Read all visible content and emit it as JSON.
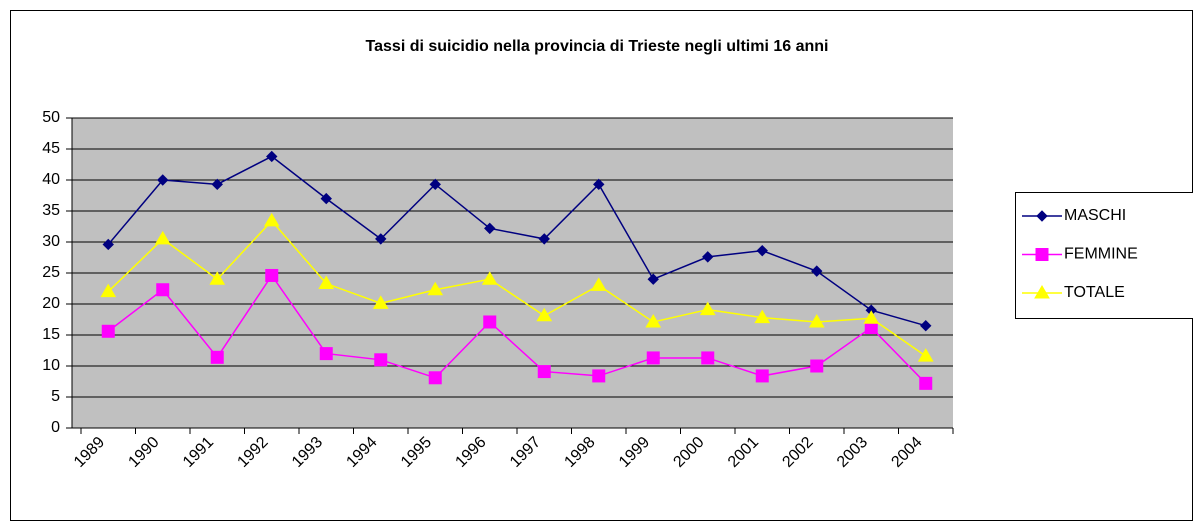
{
  "chart_data": {
    "type": "line",
    "title": "Tassi di suicidio nella provincia di Trieste negli ultimi 16 anni",
    "categories": [
      "1989",
      "1990",
      "1991",
      "1992",
      "1993",
      "1994",
      "1995",
      "1996",
      "1997",
      "1998",
      "1999",
      "2000",
      "2001",
      "2002",
      "2003",
      "2004"
    ],
    "series": [
      {
        "name": "MASCHI",
        "color": "#000080",
        "marker": "diamond",
        "values": [
          29.6,
          40,
          39.3,
          43.8,
          37,
          30.5,
          39.3,
          32.2,
          30.5,
          39.3,
          24,
          27.6,
          28.6,
          25.3,
          19,
          16.5
        ]
      },
      {
        "name": "FEMMINE",
        "color": "#ff00ff",
        "marker": "square",
        "values": [
          15.6,
          22.3,
          11.4,
          24.6,
          12,
          11,
          8.1,
          17.1,
          9.1,
          8.4,
          11.3,
          11.3,
          8.4,
          10,
          16.2,
          7.2
        ]
      },
      {
        "name": "TOTALE",
        "color": "#ffff00",
        "marker": "triangle",
        "values": [
          22,
          30.5,
          24,
          33.4,
          23.3,
          20.1,
          22.3,
          24,
          18.1,
          23,
          17.1,
          19.1,
          17.8,
          17.1,
          17.7,
          11.6
        ]
      }
    ],
    "ylim": [
      0,
      50
    ],
    "yticks": [
      0,
      5,
      10,
      15,
      20,
      25,
      30,
      35,
      40,
      45,
      50
    ],
    "grid": true,
    "legend": "right"
  }
}
